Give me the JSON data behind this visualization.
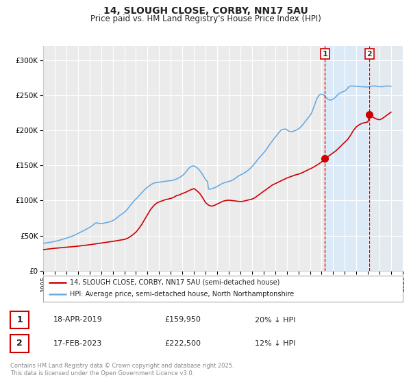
{
  "title": "14, SLOUGH CLOSE, CORBY, NN17 5AU",
  "subtitle": "Price paid vs. HM Land Registry's House Price Index (HPI)",
  "title_fontsize": 10,
  "subtitle_fontsize": 8.5,
  "ylim": [
    0,
    320000
  ],
  "xlim_start": 1995,
  "xlim_end": 2026,
  "background_color": "#ffffff",
  "plot_bg_color": "#ebebeb",
  "grid_color": "#ffffff",
  "shade_color": "#dce9f7",
  "vline_color": "#cc0000",
  "hpi_color": "#6aabe0",
  "price_color": "#cc0000",
  "marker_color": "#cc0000",
  "legend_label_price": "14, SLOUGH CLOSE, CORBY, NN17 5AU (semi-detached house)",
  "legend_label_hpi": "HPI: Average price, semi-detached house, North Northamptonshire",
  "transaction1_date": "18-APR-2019",
  "transaction1_price": "£159,950",
  "transaction1_hpi": "20% ↓ HPI",
  "transaction1_x": 2019.29,
  "transaction1_y": 159950,
  "transaction2_date": "17-FEB-2023",
  "transaction2_price": "£222,500",
  "transaction2_hpi": "12% ↓ HPI",
  "transaction2_x": 2023.12,
  "transaction2_y": 222500,
  "footer": "Contains HM Land Registry data © Crown copyright and database right 2025.\nThis data is licensed under the Open Government Licence v3.0.",
  "yticks": [
    0,
    50000,
    100000,
    150000,
    200000,
    250000,
    300000
  ],
  "ytick_labels": [
    "£0",
    "£50K",
    "£100K",
    "£150K",
    "£200K",
    "£250K",
    "£300K"
  ],
  "hpi_data_x": [
    1995.0,
    1995.08,
    1995.17,
    1995.25,
    1995.33,
    1995.42,
    1995.5,
    1995.58,
    1995.67,
    1995.75,
    1995.83,
    1995.92,
    1996.0,
    1996.08,
    1996.17,
    1996.25,
    1996.33,
    1996.42,
    1996.5,
    1996.58,
    1996.67,
    1996.75,
    1996.83,
    1996.92,
    1997.0,
    1997.08,
    1997.17,
    1997.25,
    1997.33,
    1997.42,
    1997.5,
    1997.58,
    1997.67,
    1997.75,
    1997.83,
    1997.92,
    1998.0,
    1998.08,
    1998.17,
    1998.25,
    1998.33,
    1998.42,
    1998.5,
    1998.58,
    1998.67,
    1998.75,
    1998.83,
    1998.92,
    1999.0,
    1999.08,
    1999.17,
    1999.25,
    1999.33,
    1999.42,
    1999.5,
    1999.58,
    1999.67,
    1999.75,
    1999.83,
    1999.92,
    2000.0,
    2000.08,
    2000.17,
    2000.25,
    2000.33,
    2000.42,
    2000.5,
    2000.58,
    2000.67,
    2000.75,
    2000.83,
    2000.92,
    2001.0,
    2001.08,
    2001.17,
    2001.25,
    2001.33,
    2001.42,
    2001.5,
    2001.58,
    2001.67,
    2001.75,
    2001.83,
    2001.92,
    2002.0,
    2002.08,
    2002.17,
    2002.25,
    2002.33,
    2002.42,
    2002.5,
    2002.58,
    2002.67,
    2002.75,
    2002.83,
    2002.92,
    2003.0,
    2003.08,
    2003.17,
    2003.25,
    2003.33,
    2003.42,
    2003.5,
    2003.58,
    2003.67,
    2003.75,
    2003.83,
    2003.92,
    2004.0,
    2004.08,
    2004.17,
    2004.25,
    2004.33,
    2004.42,
    2004.5,
    2004.58,
    2004.67,
    2004.75,
    2004.83,
    2004.92,
    2005.0,
    2005.08,
    2005.17,
    2005.25,
    2005.33,
    2005.42,
    2005.5,
    2005.58,
    2005.67,
    2005.75,
    2005.83,
    2005.92,
    2006.0,
    2006.08,
    2006.17,
    2006.25,
    2006.33,
    2006.42,
    2006.5,
    2006.58,
    2006.67,
    2006.75,
    2006.83,
    2006.92,
    2007.0,
    2007.08,
    2007.17,
    2007.25,
    2007.33,
    2007.42,
    2007.5,
    2007.58,
    2007.67,
    2007.75,
    2007.83,
    2007.92,
    2008.0,
    2008.08,
    2008.17,
    2008.25,
    2008.33,
    2008.42,
    2008.5,
    2008.58,
    2008.67,
    2008.75,
    2008.83,
    2008.92,
    2009.0,
    2009.08,
    2009.17,
    2009.25,
    2009.33,
    2009.42,
    2009.5,
    2009.58,
    2009.67,
    2009.75,
    2009.83,
    2009.92,
    2010.0,
    2010.08,
    2010.17,
    2010.25,
    2010.33,
    2010.42,
    2010.5,
    2010.58,
    2010.67,
    2010.75,
    2010.83,
    2010.92,
    2011.0,
    2011.08,
    2011.17,
    2011.25,
    2011.33,
    2011.42,
    2011.5,
    2011.58,
    2011.67,
    2011.75,
    2011.83,
    2011.92,
    2012.0,
    2012.08,
    2012.17,
    2012.25,
    2012.33,
    2012.42,
    2012.5,
    2012.58,
    2012.67,
    2012.75,
    2012.83,
    2012.92,
    2013.0,
    2013.08,
    2013.17,
    2013.25,
    2013.33,
    2013.42,
    2013.5,
    2013.58,
    2013.67,
    2013.75,
    2013.83,
    2013.92,
    2014.0,
    2014.08,
    2014.17,
    2014.25,
    2014.33,
    2014.42,
    2014.5,
    2014.58,
    2014.67,
    2014.75,
    2014.83,
    2014.92,
    2015.0,
    2015.08,
    2015.17,
    2015.25,
    2015.33,
    2015.42,
    2015.5,
    2015.58,
    2015.67,
    2015.75,
    2015.83,
    2015.92,
    2016.0,
    2016.08,
    2016.17,
    2016.25,
    2016.33,
    2016.42,
    2016.5,
    2016.58,
    2016.67,
    2016.75,
    2016.83,
    2016.92,
    2017.0,
    2017.08,
    2017.17,
    2017.25,
    2017.33,
    2017.42,
    2017.5,
    2017.58,
    2017.67,
    2017.75,
    2017.83,
    2017.92,
    2018.0,
    2018.08,
    2018.17,
    2018.25,
    2018.33,
    2018.42,
    2018.5,
    2018.58,
    2018.67,
    2018.75,
    2018.83,
    2018.92,
    2019.0,
    2019.08,
    2019.17,
    2019.25,
    2019.33,
    2019.42,
    2019.5,
    2019.58,
    2019.67,
    2019.75,
    2019.83,
    2019.92,
    2020.0,
    2020.08,
    2020.17,
    2020.25,
    2020.33,
    2020.42,
    2020.5,
    2020.58,
    2020.67,
    2020.75,
    2020.83,
    2020.92,
    2021.0,
    2021.08,
    2021.17,
    2021.25,
    2021.33,
    2021.42,
    2021.5,
    2021.58,
    2021.67,
    2021.75,
    2021.83,
    2021.92,
    2022.0,
    2022.08,
    2022.17,
    2022.25,
    2022.33,
    2022.42,
    2022.5,
    2022.58,
    2022.67,
    2022.75,
    2022.83,
    2022.92,
    2023.0,
    2023.08,
    2023.17,
    2023.25,
    2023.33,
    2023.42,
    2023.5,
    2023.58,
    2023.67,
    2023.75,
    2023.83,
    2023.92,
    2024.0,
    2024.08,
    2024.17,
    2024.25,
    2024.33,
    2024.42,
    2024.5,
    2024.58,
    2024.67,
    2024.75,
    2024.83,
    2024.92,
    2025.0
  ],
  "hpi_data_y": [
    39000,
    39200,
    39500,
    39700,
    39900,
    40100,
    40300,
    40500,
    40700,
    41000,
    41200,
    41500,
    41800,
    42100,
    42400,
    42700,
    43100,
    43500,
    43900,
    44300,
    44700,
    45100,
    45500,
    45900,
    46300,
    46800,
    47300,
    47800,
    48300,
    48800,
    49300,
    49800,
    50400,
    51000,
    51600,
    52300,
    53000,
    53700,
    54400,
    55100,
    55800,
    56500,
    57200,
    57900,
    58600,
    59300,
    60000,
    60800,
    61600,
    62500,
    63500,
    64500,
    65600,
    66700,
    67800,
    68200,
    67900,
    67600,
    67400,
    67300,
    67200,
    67300,
    67500,
    67800,
    68100,
    68400,
    68700,
    69000,
    69300,
    69700,
    70200,
    70800,
    71400,
    72100,
    73000,
    74000,
    75100,
    76200,
    77300,
    78400,
    79400,
    80300,
    81200,
    82200,
    83300,
    84500,
    86000,
    87500,
    89200,
    91000,
    92800,
    94600,
    96400,
    98000,
    99500,
    100900,
    102200,
    103500,
    105000,
    106500,
    108000,
    109500,
    111000,
    112500,
    114000,
    115500,
    116800,
    118000,
    119000,
    120000,
    121000,
    122000,
    123000,
    123800,
    124500,
    125000,
    125300,
    125500,
    125700,
    125900,
    126100,
    126300,
    126500,
    126700,
    126900,
    127100,
    127300,
    127500,
    127700,
    127900,
    128100,
    128200,
    128300,
    128500,
    128800,
    129200,
    129600,
    130100,
    130700,
    131300,
    132000,
    132800,
    133600,
    134500,
    135500,
    136600,
    138000,
    139500,
    141200,
    143000,
    144800,
    146300,
    147500,
    148400,
    148900,
    149200,
    149100,
    148600,
    147800,
    146800,
    145600,
    144200,
    142600,
    140800,
    138800,
    136600,
    134400,
    132200,
    130000,
    128200,
    127000,
    116500,
    116200,
    116400,
    116800,
    117200,
    117600,
    118000,
    118500,
    119200,
    120000,
    120900,
    121800,
    122600,
    123300,
    124000,
    124700,
    125200,
    125600,
    126000,
    126400,
    126700,
    127000,
    127400,
    127900,
    128500,
    129200,
    130000,
    130900,
    131900,
    132900,
    133900,
    134900,
    135700,
    136400,
    137100,
    137800,
    138500,
    139200,
    140000,
    141000,
    142000,
    143100,
    144300,
    145500,
    146800,
    148200,
    149700,
    151300,
    153000,
    154800,
    156600,
    158400,
    160100,
    161700,
    163200,
    164700,
    166200,
    167700,
    169400,
    171200,
    173100,
    175100,
    177100,
    179100,
    181000,
    182900,
    184700,
    186500,
    188300,
    190000,
    191800,
    193600,
    195400,
    197100,
    198700,
    200200,
    200800,
    201200,
    201500,
    201700,
    201900,
    200800,
    199800,
    199000,
    198500,
    198200,
    198200,
    198400,
    198800,
    199300,
    199900,
    200500,
    201200,
    202000,
    203000,
    204200,
    205600,
    207100,
    208800,
    210600,
    212400,
    214200,
    216000,
    217700,
    219400,
    221000,
    223000,
    226000,
    229500,
    233000,
    237000,
    241000,
    244500,
    247200,
    249200,
    250500,
    251300,
    251500,
    251200,
    250500,
    249400,
    248000,
    246500,
    245000,
    244000,
    243500,
    243000,
    243200,
    243800,
    244500,
    245500,
    246800,
    248200,
    249600,
    250900,
    252000,
    253000,
    253800,
    254400,
    255000,
    255500,
    256000,
    257000,
    258500,
    260000,
    261500,
    262500,
    263000,
    263200,
    263100,
    263000,
    262900,
    262800,
    262700,
    262600,
    262500,
    262400,
    262300,
    262200,
    262100,
    262000,
    261900,
    261800,
    261700,
    261700,
    261800,
    262000,
    262300,
    262600,
    262900,
    263100,
    263200,
    263100,
    263000,
    262800,
    262600,
    262400,
    262200,
    262100,
    262100,
    262200,
    262400,
    262700,
    263000,
    263100,
    263100,
    263000,
    262900,
    262800,
    262700
  ],
  "price_data_x": [
    1995.0,
    1995.25,
    1995.5,
    1995.75,
    1996.0,
    1996.25,
    1996.5,
    1996.75,
    1997.0,
    1997.25,
    1997.5,
    1997.75,
    1998.0,
    1998.25,
    1998.5,
    1998.75,
    1999.0,
    1999.25,
    1999.5,
    1999.75,
    2000.0,
    2000.25,
    2000.5,
    2000.75,
    2001.0,
    2001.25,
    2001.5,
    2001.75,
    2002.0,
    2002.25,
    2002.5,
    2002.75,
    2003.0,
    2003.25,
    2003.5,
    2003.75,
    2004.0,
    2004.25,
    2004.5,
    2004.75,
    2005.0,
    2005.25,
    2005.5,
    2005.75,
    2006.0,
    2006.25,
    2006.5,
    2006.75,
    2007.0,
    2007.25,
    2007.5,
    2007.75,
    2008.0,
    2008.25,
    2008.5,
    2008.75,
    2009.0,
    2009.25,
    2009.5,
    2009.75,
    2010.0,
    2010.25,
    2010.5,
    2010.75,
    2011.0,
    2011.25,
    2011.5,
    2011.75,
    2012.0,
    2012.25,
    2012.5,
    2012.75,
    2013.0,
    2013.25,
    2013.5,
    2013.75,
    2014.0,
    2014.25,
    2014.5,
    2014.75,
    2015.0,
    2015.25,
    2015.5,
    2015.75,
    2016.0,
    2016.25,
    2016.5,
    2016.75,
    2017.0,
    2017.25,
    2017.5,
    2017.75,
    2018.0,
    2018.25,
    2018.5,
    2018.75,
    2019.0,
    2019.29,
    2019.5,
    2019.75,
    2020.0,
    2020.25,
    2020.5,
    2020.75,
    2021.0,
    2021.25,
    2021.5,
    2021.75,
    2022.0,
    2022.25,
    2022.5,
    2022.75,
    2023.0,
    2023.12,
    2023.5,
    2023.75,
    2024.0,
    2024.25,
    2024.5,
    2024.75,
    2025.0
  ],
  "price_data_y": [
    30000,
    30500,
    31000,
    31500,
    32000,
    32300,
    32700,
    33100,
    33500,
    33800,
    34200,
    34600,
    35000,
    35500,
    36000,
    36500,
    37000,
    37600,
    38200,
    38800,
    39400,
    40000,
    40600,
    41200,
    41800,
    42500,
    43200,
    43900,
    44600,
    46000,
    48500,
    51500,
    55000,
    60000,
    66000,
    73000,
    80000,
    87000,
    92000,
    96000,
    98000,
    99500,
    101000,
    102000,
    103000,
    104500,
    107000,
    108000,
    110000,
    111500,
    113500,
    115500,
    117000,
    114000,
    110000,
    104000,
    97000,
    93500,
    92000,
    93000,
    95000,
    97000,
    99000,
    100000,
    100500,
    100000,
    99500,
    99000,
    98500,
    99000,
    100000,
    101000,
    102000,
    104000,
    107000,
    110000,
    113000,
    116000,
    119000,
    122000,
    124000,
    126000,
    128000,
    130000,
    132000,
    133500,
    135000,
    136500,
    137500,
    139000,
    141000,
    143000,
    145000,
    147000,
    149500,
    152000,
    155000,
    159950,
    162000,
    165000,
    168000,
    171000,
    175000,
    179000,
    183000,
    187000,
    193000,
    200000,
    205000,
    208000,
    210000,
    211000,
    212000,
    222500,
    218000,
    216000,
    215000,
    217000,
    220000,
    223000,
    226000
  ]
}
